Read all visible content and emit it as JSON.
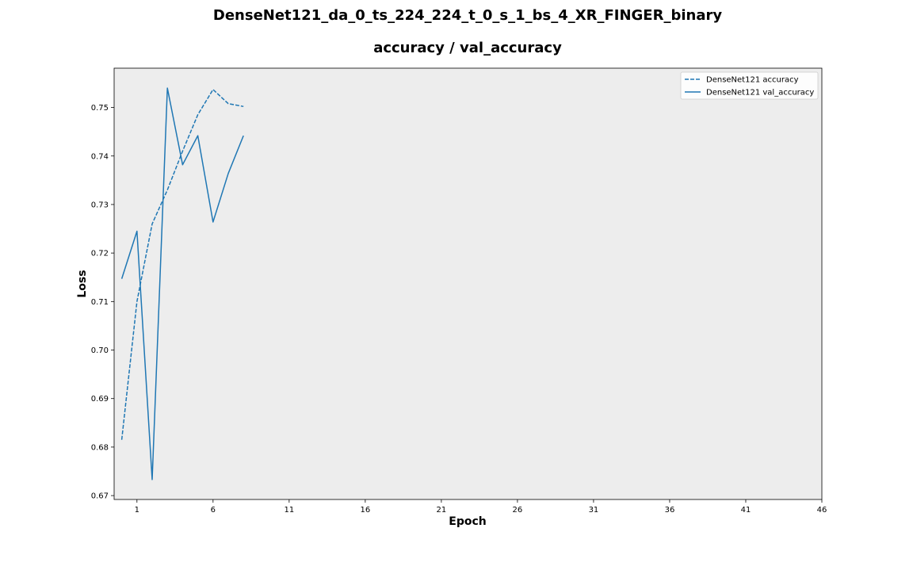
{
  "figure": {
    "title": "DenseNet121_da_0_ts_224_224_t_0_s_1_bs_4_XR_FINGER_binary",
    "subtitle": "accuracy / val_accuracy"
  },
  "chart_data": {
    "type": "line",
    "title": "DenseNet121_da_0_ts_224_224_t_0_s_1_bs_4_XR_FINGER_binary",
    "subtitle": "accuracy / val_accuracy",
    "xlabel": "Epoch",
    "ylabel": "Loss",
    "xlim": [
      -0.5,
      46
    ],
    "ylim": [
      0.6692,
      0.7581
    ],
    "xticks": [
      1,
      6,
      11,
      16,
      21,
      26,
      31,
      36,
      41,
      46
    ],
    "yticks": [
      0.67,
      0.68,
      0.69,
      0.7,
      0.71,
      0.72,
      0.73,
      0.74,
      0.75
    ],
    "ytick_labels": [
      "0.67",
      "0.68",
      "0.69",
      "0.70",
      "0.71",
      "0.72",
      "0.73",
      "0.74",
      "0.75"
    ],
    "grid": false,
    "background": "#ededed",
    "legend_position": "top-right",
    "series": [
      {
        "name": "DenseNet121 accuracy",
        "style": "dashed",
        "color": "#1f77b4",
        "x": [
          0,
          1,
          2,
          3,
          4,
          5,
          6,
          7,
          8
        ],
        "y": [
          0.6815,
          0.71,
          0.726,
          0.733,
          0.741,
          0.7485,
          0.7537,
          0.7508,
          0.7502
        ]
      },
      {
        "name": "DenseNet121 val_accuracy",
        "style": "solid",
        "color": "#1f77b4",
        "x": [
          0,
          1,
          2,
          3,
          4,
          5,
          6,
          7,
          8
        ],
        "y": [
          0.7147,
          0.7245,
          0.6733,
          0.754,
          0.7382,
          0.7442,
          0.7264,
          0.7364,
          0.7442
        ]
      }
    ]
  }
}
